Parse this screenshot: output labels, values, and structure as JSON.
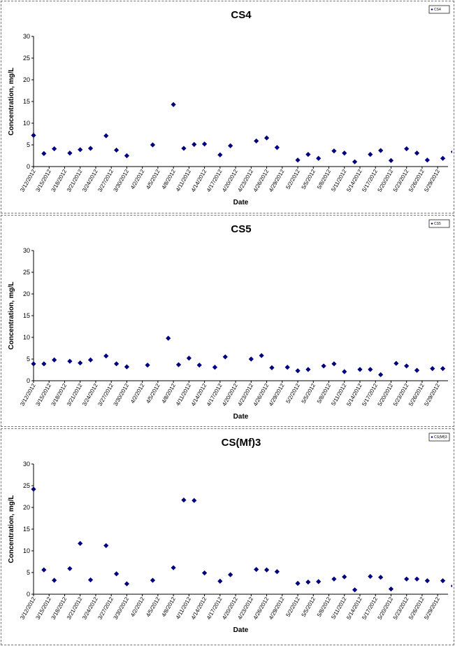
{
  "chart_data": [
    {
      "type": "scatter",
      "title": "CS4",
      "xlabel": "Date",
      "ylabel": "Concentration, mg/L",
      "ylim": [
        0,
        30
      ],
      "yticks": [
        0,
        5,
        10,
        15,
        20,
        25,
        30
      ],
      "xlim": [
        "3/12/2012",
        "5/31/2012"
      ],
      "xticks": [
        "3/12/2012",
        "3/15/2012",
        "3/18/2012",
        "3/21/2012",
        "3/24/2012",
        "3/27/2012",
        "3/30/2012",
        "4/2/2012",
        "4/5/2012",
        "4/8/2012",
        "4/11/2012",
        "4/14/2012",
        "4/17/2012",
        "4/20/2012",
        "4/23/2012",
        "4/26/2012",
        "4/29/2012",
        "5/2/2012",
        "5/5/2012",
        "5/8/2012",
        "5/11/2012",
        "5/14/2012",
        "5/17/2012",
        "5/20/2012",
        "5/23/2012",
        "5/26/2012",
        "5/29/2012"
      ],
      "grid": false,
      "legend": "top-right",
      "marker_color": "#00007f",
      "series": [
        {
          "name": "CS4",
          "points": [
            [
              "3/12/2012",
              7.2
            ],
            [
              "3/14/2012",
              3.0
            ],
            [
              "3/16/2012",
              4.1
            ],
            [
              "3/19/2012",
              3.1
            ],
            [
              "3/21/2012",
              3.9
            ],
            [
              "3/23/2012",
              4.2
            ],
            [
              "3/26/2012",
              7.1
            ],
            [
              "3/28/2012",
              3.8
            ],
            [
              "3/30/2012",
              2.5
            ],
            [
              "4/4/2012",
              5.0
            ],
            [
              "4/8/2012",
              14.3
            ],
            [
              "4/10/2012",
              4.2
            ],
            [
              "4/12/2012",
              5.1
            ],
            [
              "4/14/2012",
              5.2
            ],
            [
              "4/17/2012",
              2.7
            ],
            [
              "4/19/2012",
              4.8
            ],
            [
              "4/24/2012",
              5.9
            ],
            [
              "4/26/2012",
              6.6
            ],
            [
              "4/28/2012",
              4.4
            ],
            [
              "5/2/2012",
              1.5
            ],
            [
              "5/4/2012",
              2.8
            ],
            [
              "5/6/2012",
              1.9
            ],
            [
              "5/9/2012",
              3.6
            ],
            [
              "5/11/2012",
              3.1
            ],
            [
              "5/13/2012",
              1.1
            ],
            [
              "5/16/2012",
              2.8
            ],
            [
              "5/18/2012",
              3.7
            ],
            [
              "5/20/2012",
              1.4
            ],
            [
              "5/23/2012",
              4.1
            ],
            [
              "5/25/2012",
              3.1
            ],
            [
              "5/27/2012",
              1.5
            ],
            [
              "5/30/2012",
              1.9
            ],
            [
              "6/1/2012",
              3.4
            ]
          ]
        }
      ]
    },
    {
      "type": "scatter",
      "title": "CS5",
      "xlabel": "Date",
      "ylabel": "Concentration, mg/L",
      "ylim": [
        0,
        30
      ],
      "yticks": [
        0,
        5,
        10,
        15,
        20,
        25,
        30
      ],
      "xlim": [
        "3/12/2012",
        "5/31/2012"
      ],
      "xticks": [
        "3/12/2012",
        "3/15/2012",
        "3/18/2012",
        "3/21/2012",
        "3/24/2012",
        "3/27/2012",
        "3/30/2012",
        "4/2/2012",
        "4/5/2012",
        "4/8/2012",
        "4/11/2012",
        "4/14/2012",
        "4/17/2012",
        "4/20/2012",
        "4/23/2012",
        "4/26/2012",
        "4/29/2012",
        "5/2/2012",
        "5/5/2012",
        "5/8/2012",
        "5/11/2012",
        "5/14/2012",
        "5/17/2012",
        "5/20/2012",
        "5/23/2012",
        "5/26/2012",
        "5/29/2012"
      ],
      "grid": false,
      "legend": "top-right",
      "marker_color": "#00007f",
      "series": [
        {
          "name": "CS5",
          "points": [
            [
              "3/12/2012",
              3.9
            ],
            [
              "3/14/2012",
              3.9
            ],
            [
              "3/16/2012",
              4.8
            ],
            [
              "3/19/2012",
              4.5
            ],
            [
              "3/21/2012",
              4.1
            ],
            [
              "3/23/2012",
              4.8
            ],
            [
              "3/26/2012",
              5.7
            ],
            [
              "3/28/2012",
              3.9
            ],
            [
              "3/30/2012",
              3.2
            ],
            [
              "4/3/2012",
              3.6
            ],
            [
              "4/7/2012",
              9.8
            ],
            [
              "4/9/2012",
              3.7
            ],
            [
              "4/11/2012",
              5.2
            ],
            [
              "4/13/2012",
              3.6
            ],
            [
              "4/16/2012",
              3.1
            ],
            [
              "4/18/2012",
              5.5
            ],
            [
              "4/23/2012",
              5.0
            ],
            [
              "4/25/2012",
              5.8
            ],
            [
              "4/27/2012",
              3.0
            ],
            [
              "4/30/2012",
              3.1
            ],
            [
              "5/2/2012",
              2.3
            ],
            [
              "5/4/2012",
              2.6
            ],
            [
              "5/7/2012",
              3.4
            ],
            [
              "5/9/2012",
              3.9
            ],
            [
              "5/11/2012",
              2.1
            ],
            [
              "5/14/2012",
              2.6
            ],
            [
              "5/16/2012",
              2.6
            ],
            [
              "5/18/2012",
              1.4
            ],
            [
              "5/21/2012",
              4.0
            ],
            [
              "5/23/2012",
              3.4
            ],
            [
              "5/25/2012",
              2.4
            ],
            [
              "5/28/2012",
              2.8
            ],
            [
              "5/30/2012",
              2.8
            ]
          ]
        }
      ]
    },
    {
      "type": "scatter",
      "title": "CS(Mf)3",
      "xlabel": "Date",
      "ylabel": "Concentration, mg/L",
      "ylim": [
        0,
        30
      ],
      "yticks": [
        0,
        5,
        10,
        15,
        20,
        25,
        30
      ],
      "xlim": [
        "3/12/2012",
        "5/31/2012"
      ],
      "xticks": [
        "3/12/2012",
        "3/15/2012",
        "3/18/2012",
        "3/21/2012",
        "3/24/2012",
        "3/27/2012",
        "3/30/2012",
        "4/2/2012",
        "4/5/2012",
        "4/8/2012",
        "4/11/2012",
        "4/14/2012",
        "4/17/2012",
        "4/20/2012",
        "4/23/2012",
        "4/26/2012",
        "4/29/2012",
        "5/2/2012",
        "5/5/2012",
        "5/8/2012",
        "5/11/2012",
        "5/14/2012",
        "5/17/2012",
        "5/20/2012",
        "5/23/2012",
        "5/26/2012",
        "5/29/2012"
      ],
      "grid": false,
      "legend": "top-right",
      "marker_color": "#00007f",
      "series": [
        {
          "name": "CS(Mf)3",
          "points": [
            [
              "3/12/2012",
              24.2
            ],
            [
              "3/14/2012",
              5.6
            ],
            [
              "3/16/2012",
              3.2
            ],
            [
              "3/19/2012",
              5.9
            ],
            [
              "3/21/2012",
              11.7
            ],
            [
              "3/23/2012",
              3.3
            ],
            [
              "3/26/2012",
              11.2
            ],
            [
              "3/28/2012",
              4.7
            ],
            [
              "3/30/2012",
              2.4
            ],
            [
              "4/4/2012",
              3.2
            ],
            [
              "4/8/2012",
              6.1
            ],
            [
              "4/10/2012",
              21.7
            ],
            [
              "4/12/2012",
              21.6
            ],
            [
              "4/14/2012",
              4.9
            ],
            [
              "4/17/2012",
              3.0
            ],
            [
              "4/19/2012",
              4.5
            ],
            [
              "4/24/2012",
              5.7
            ],
            [
              "4/26/2012",
              5.6
            ],
            [
              "4/28/2012",
              5.2
            ],
            [
              "5/2/2012",
              2.5
            ],
            [
              "5/4/2012",
              2.8
            ],
            [
              "5/6/2012",
              2.9
            ],
            [
              "5/9/2012",
              3.5
            ],
            [
              "5/11/2012",
              4.0
            ],
            [
              "5/13/2012",
              1.0
            ],
            [
              "5/16/2012",
              4.1
            ],
            [
              "5/18/2012",
              3.9
            ],
            [
              "5/20/2012",
              1.2
            ],
            [
              "5/23/2012",
              3.5
            ],
            [
              "5/25/2012",
              3.5
            ],
            [
              "5/27/2012",
              3.1
            ],
            [
              "5/30/2012",
              3.1
            ],
            [
              "6/1/2012",
              1.9
            ]
          ]
        }
      ]
    }
  ]
}
